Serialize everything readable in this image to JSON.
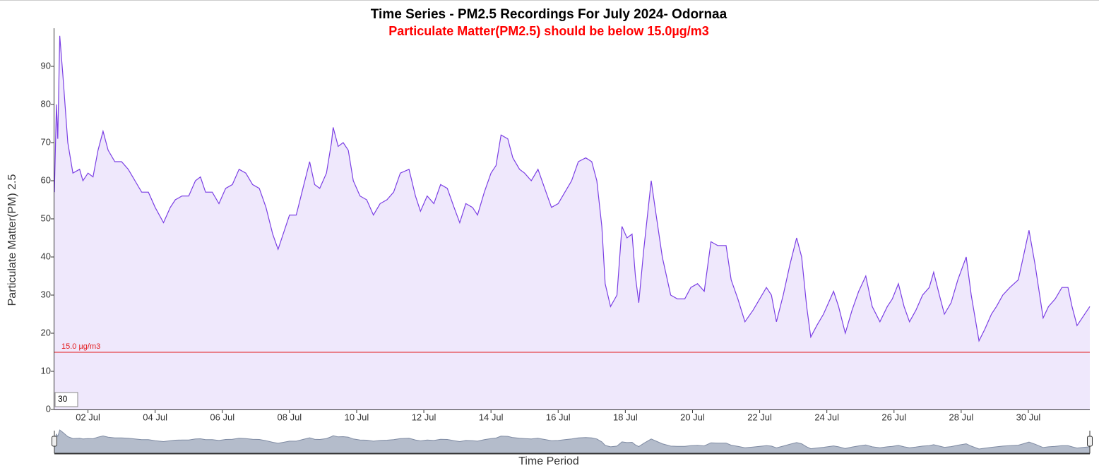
{
  "chart_data": {
    "type": "line",
    "title": "Time Series - PM2.5 Recordings For July 2024- Odornaa",
    "subtitle": "Particulate Matter(PM2.5) should be below 15.0µg/m3",
    "y_label": "Particulate Matter(PM) 2.5",
    "x_label": "Time Period",
    "threshold": 15,
    "threshold_label": "15.0 µg/m3",
    "threshold_color": "#e31a1c",
    "roll_period": 30,
    "line_color": "#7b3fe4",
    "fill_color": "#efe8fc",
    "xlim": [
      1,
      31.83
    ],
    "ylim": [
      0,
      100
    ],
    "xticks": [
      {
        "value": 2,
        "label": "02 Jul"
      },
      {
        "value": 4,
        "label": "04 Jul"
      },
      {
        "value": 6,
        "label": "06 Jul"
      },
      {
        "value": 8,
        "label": "08 Jul"
      },
      {
        "value": 10,
        "label": "10 Jul"
      },
      {
        "value": 12,
        "label": "12 Jul"
      },
      {
        "value": 14,
        "label": "14 Jul"
      },
      {
        "value": 16,
        "label": "16 Jul"
      },
      {
        "value": 18,
        "label": "18 Jul"
      },
      {
        "value": 20,
        "label": "20 Jul"
      },
      {
        "value": 22,
        "label": "22 Jul"
      },
      {
        "value": 24,
        "label": "24 Jul"
      },
      {
        "value": 26,
        "label": "26 Jul"
      },
      {
        "value": 28,
        "label": "28 Jul"
      },
      {
        "value": 30,
        "label": "30 Jul"
      }
    ],
    "yticks": [
      0,
      10,
      20,
      30,
      40,
      50,
      60,
      70,
      80,
      90
    ],
    "x": [
      1.0,
      1.06,
      1.1,
      1.16,
      1.25,
      1.4,
      1.55,
      1.75,
      1.85,
      2.0,
      2.15,
      2.3,
      2.45,
      2.6,
      2.8,
      3.0,
      3.2,
      3.4,
      3.6,
      3.8,
      4.0,
      4.25,
      4.45,
      4.6,
      4.8,
      5.0,
      5.2,
      5.35,
      5.5,
      5.7,
      5.9,
      6.1,
      6.3,
      6.5,
      6.7,
      6.9,
      7.1,
      7.3,
      7.5,
      7.66,
      7.85,
      8.0,
      8.2,
      8.4,
      8.6,
      8.75,
      8.9,
      9.1,
      9.25,
      9.3,
      9.45,
      9.6,
      9.75,
      9.9,
      10.1,
      10.3,
      10.5,
      10.7,
      10.9,
      11.1,
      11.3,
      11.56,
      11.75,
      11.9,
      12.1,
      12.3,
      12.5,
      12.7,
      12.9,
      13.07,
      13.25,
      13.45,
      13.6,
      13.8,
      14.0,
      14.15,
      14.3,
      14.5,
      14.65,
      14.85,
      15.0,
      15.2,
      15.4,
      15.6,
      15.8,
      16.0,
      16.2,
      16.4,
      16.6,
      16.82,
      17.0,
      17.15,
      17.3,
      17.4,
      17.56,
      17.75,
      17.9,
      18.05,
      18.2,
      18.3,
      18.4,
      18.55,
      18.77,
      18.9,
      19.1,
      19.35,
      19.55,
      19.77,
      19.95,
      20.15,
      20.35,
      20.55,
      20.75,
      21.0,
      21.15,
      21.35,
      21.56,
      21.8,
      22.0,
      22.2,
      22.35,
      22.5,
      22.7,
      22.9,
      23.1,
      23.25,
      23.4,
      23.52,
      23.7,
      23.9,
      24.05,
      24.2,
      24.35,
      24.55,
      24.75,
      24.95,
      25.16,
      25.35,
      25.58,
      25.8,
      25.95,
      26.13,
      26.3,
      26.46,
      26.65,
      26.85,
      27.05,
      27.18,
      27.35,
      27.5,
      27.7,
      27.9,
      28.15,
      28.3,
      28.53,
      28.7,
      28.9,
      29.05,
      29.24,
      29.45,
      29.7,
      29.85,
      30.02,
      30.2,
      30.44,
      30.6,
      30.8,
      31.0,
      31.18,
      31.3,
      31.45,
      31.6,
      31.83
    ],
    "series": [
      {
        "name": "PM2.5",
        "values": [
          57,
          80,
          71,
          98,
          88,
          70,
          62,
          63,
          60,
          62,
          61,
          68,
          73,
          68,
          65,
          65,
          63,
          60,
          57,
          57,
          53,
          49,
          53,
          55,
          56,
          56,
          60,
          61,
          57,
          57,
          54,
          58,
          59,
          63,
          62,
          59,
          58,
          53,
          46,
          42,
          47,
          51,
          51,
          58,
          65,
          59,
          58,
          62,
          70,
          74,
          69,
          70,
          68,
          60,
          56,
          55,
          51,
          54,
          55,
          57,
          62,
          63,
          56,
          52,
          56,
          54,
          59,
          58,
          53,
          49,
          54,
          53,
          51,
          57,
          62,
          64,
          72,
          71,
          66,
          63,
          62,
          60,
          63,
          58,
          53,
          54,
          57,
          60,
          65,
          66,
          65,
          60,
          48,
          33,
          27,
          30,
          48,
          45,
          46,
          35,
          28,
          42,
          60,
          52,
          40,
          30,
          29,
          29,
          32,
          33,
          31,
          44,
          43,
          43,
          34,
          29,
          23,
          26,
          29,
          32,
          30,
          23,
          30,
          38,
          45,
          40,
          27,
          19,
          22,
          25,
          28,
          31,
          27,
          20,
          26,
          31,
          35,
          27,
          23,
          27,
          29,
          33,
          27,
          23,
          26,
          30,
          32,
          36,
          30,
          25,
          28,
          34,
          40,
          30,
          18,
          21,
          25,
          27,
          30,
          32,
          34,
          40,
          47,
          38,
          24,
          27,
          29,
          32,
          32,
          27,
          22,
          24,
          27
        ]
      }
    ]
  }
}
